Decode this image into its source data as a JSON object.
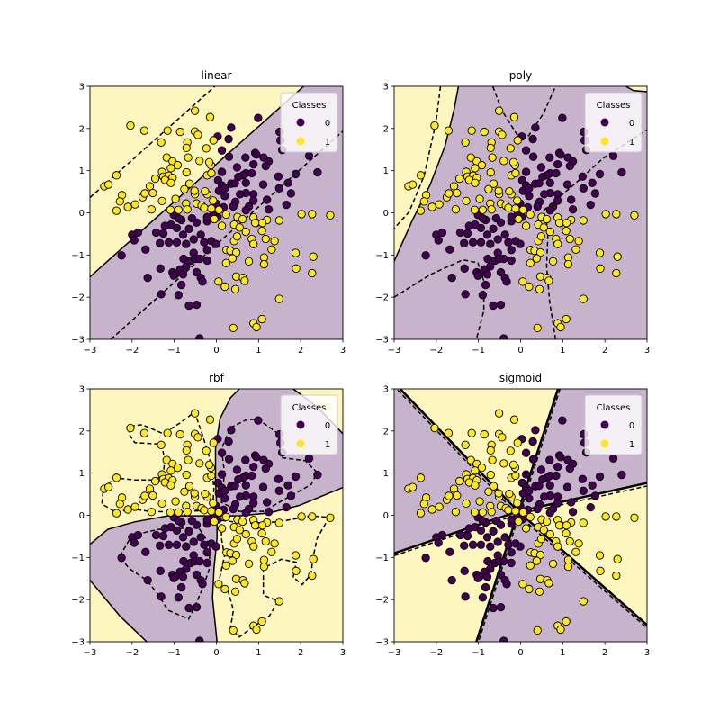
{
  "chart_data": {
    "type": "scatter",
    "xlim": [
      -3,
      3
    ],
    "ylim": [
      -3,
      3
    ],
    "ticks": [
      "−3",
      "−2",
      "−1",
      "0",
      "1",
      "2",
      "3"
    ],
    "tick_values": [
      -3,
      -2,
      -1,
      0,
      1,
      2,
      3
    ],
    "legend": {
      "title": "Classes",
      "entries": [
        "0",
        "1"
      ],
      "placement": "upper right"
    },
    "colors": {
      "class_0": "#440154",
      "class_1": "#fde725",
      "region_0": "#c7b3cc",
      "region_1": "#fdf7bf"
    },
    "panels": [
      {
        "title": "linear"
      },
      {
        "title": "poly"
      },
      {
        "title": "rbf"
      },
      {
        "title": "sigmoid"
      }
    ],
    "points": {
      "class_0": [
        [
          0.99,
          2.25
        ],
        [
          0.35,
          2.02
        ],
        [
          0.03,
          1.81
        ],
        [
          0.29,
          1.75
        ],
        [
          0.13,
          1.48
        ],
        [
          0.3,
          1.33
        ],
        [
          0.69,
          1.31
        ],
        [
          0.92,
          1.42
        ],
        [
          0.95,
          1.38
        ],
        [
          1.12,
          1.31
        ],
        [
          1.24,
          1.22
        ],
        [
          0.88,
          1.15
        ],
        [
          0.49,
          1.08
        ],
        [
          1.17,
          1.11
        ],
        [
          0.7,
          0.94
        ],
        [
          0.84,
          0.94
        ],
        [
          0.63,
          0.89
        ],
        [
          0.52,
          0.85
        ],
        [
          0.13,
          0.97
        ],
        [
          0.04,
          0.77
        ],
        [
          0.35,
          0.69
        ],
        [
          0.44,
          0.7
        ],
        [
          0.7,
          0.71
        ],
        [
          0.13,
          0.65
        ],
        [
          1.11,
          0.67
        ],
        [
          1.47,
          0.86
        ],
        [
          1.7,
          0.71
        ],
        [
          1.88,
          0.92
        ],
        [
          2.2,
          1.35
        ],
        [
          2.4,
          0.96
        ],
        [
          1.5,
          1.92
        ],
        [
          1.52,
          1.72
        ],
        [
          1.56,
          1.49
        ],
        [
          1.77,
          0.46
        ],
        [
          1.49,
          0.58
        ],
        [
          1.66,
          0.19
        ],
        [
          1.24,
          0.08
        ],
        [
          1.2,
          0.31
        ],
        [
          0.7,
          0.47
        ],
        [
          0.88,
          0.44
        ],
        [
          0.56,
          0.44
        ],
        [
          0.2,
          0.4
        ],
        [
          0.45,
          0.26
        ],
        [
          0.4,
          0.15
        ],
        [
          0.17,
          0.13
        ],
        [
          -0.01,
          0.22
        ],
        [
          0.06,
          0.52
        ],
        [
          0.2,
          0.58
        ],
        [
          0.77,
          0.15
        ],
        [
          0.88,
          0.29
        ],
        [
          0.7,
          0.06
        ],
        [
          0.03,
          -0.1
        ],
        [
          -0.08,
          -0.06
        ],
        [
          -0.22,
          -0.2
        ],
        [
          -0.22,
          -0.1
        ],
        [
          -0.58,
          -0.13
        ],
        [
          -0.47,
          -0.23
        ],
        [
          -0.83,
          -0.17
        ],
        [
          -1.01,
          -0.05
        ],
        [
          -0.9,
          -0.13
        ],
        [
          -1.08,
          -0.28
        ],
        [
          -0.94,
          -0.36
        ],
        [
          -1.22,
          -0.31
        ],
        [
          -1.43,
          -0.47
        ],
        [
          -1.26,
          -0.49
        ],
        [
          -1.13,
          -0.7
        ],
        [
          -0.94,
          -0.7
        ],
        [
          -0.72,
          -0.74
        ],
        [
          -0.54,
          -0.63
        ],
        [
          -0.37,
          -0.52
        ],
        [
          -0.29,
          -0.7
        ],
        [
          -0.12,
          -0.67
        ],
        [
          -0.01,
          -0.74
        ],
        [
          -0.65,
          -0.38
        ],
        [
          -0.79,
          -0.52
        ],
        [
          -2.0,
          -0.52
        ],
        [
          -1.86,
          -0.47
        ],
        [
          -1.95,
          -0.65
        ],
        [
          -1.34,
          -0.72
        ],
        [
          -1.68,
          -0.87
        ],
        [
          -2.25,
          -1.01
        ],
        [
          -0.54,
          -0.95
        ],
        [
          -0.22,
          -0.88
        ],
        [
          -0.78,
          -1.09
        ],
        [
          -0.61,
          -1.13
        ],
        [
          -0.51,
          -1.09
        ],
        [
          -0.4,
          -1.09
        ],
        [
          -0.22,
          -1.13
        ],
        [
          -0.72,
          -1.27
        ],
        [
          -0.86,
          -1.34
        ],
        [
          -1.33,
          -1.32
        ],
        [
          -1.04,
          -1.41
        ],
        [
          -0.97,
          -1.45
        ],
        [
          -0.79,
          -1.46
        ],
        [
          -0.47,
          -1.41
        ],
        [
          -0.37,
          -1.54
        ],
        [
          -0.33,
          -1.63
        ],
        [
          -1.01,
          -1.49
        ],
        [
          -1.63,
          -1.54
        ],
        [
          -0.83,
          -1.71
        ],
        [
          -1.31,
          -1.93
        ],
        [
          -0.9,
          -1.95
        ],
        [
          -0.65,
          -2.2
        ],
        [
          -0.47,
          -2.18
        ],
        [
          -0.4,
          -2.98
        ]
      ],
      "class_1": [
        [
          -2.04,
          2.07
        ],
        [
          -1.71,
          1.95
        ],
        [
          -1.16,
          1.95
        ],
        [
          -0.86,
          1.92
        ],
        [
          -0.51,
          2.42
        ],
        [
          -0.15,
          2.27
        ],
        [
          -0.51,
          1.93
        ],
        [
          -0.44,
          1.85
        ],
        [
          -0.07,
          1.72
        ],
        [
          -0.69,
          1.67
        ],
        [
          -0.71,
          1.54
        ],
        [
          -1.31,
          1.67
        ],
        [
          -0.24,
          1.53
        ],
        [
          -1.18,
          1.31
        ],
        [
          -1.04,
          1.22
        ],
        [
          -0.67,
          1.31
        ],
        [
          -0.4,
          1.23
        ],
        [
          -0.13,
          1.13
        ],
        [
          -1.08,
          1.06
        ],
        [
          -0.92,
          1.13
        ],
        [
          -0.71,
          0.96
        ],
        [
          -1.29,
          0.97
        ],
        [
          -1.26,
          0.86
        ],
        [
          -1.13,
          0.88
        ],
        [
          -1.04,
          0.83
        ],
        [
          -1.22,
          0.78
        ],
        [
          -1.08,
          0.71
        ],
        [
          -1.45,
          0.81
        ],
        [
          -1.58,
          0.63
        ],
        [
          -2.37,
          0.89
        ],
        [
          -2.66,
          0.63
        ],
        [
          -2.56,
          0.67
        ],
        [
          -2.24,
          0.42
        ],
        [
          -2.29,
          0.27
        ],
        [
          -2.37,
          0.05
        ],
        [
          -2.1,
          0.14
        ],
        [
          -1.93,
          0.2
        ],
        [
          -1.75,
          0.37
        ],
        [
          -1.7,
          0.46
        ],
        [
          -1.51,
          0.47
        ],
        [
          -1.54,
          0.08
        ],
        [
          -1.29,
          0.28
        ],
        [
          -0.97,
          0.33
        ],
        [
          -0.9,
          0.07
        ],
        [
          -1.09,
          0.07
        ],
        [
          -0.76,
          0.56
        ],
        [
          -0.64,
          0.69
        ],
        [
          -0.51,
          0.44
        ],
        [
          -0.47,
          0.22
        ],
        [
          -0.72,
          0.22
        ],
        [
          -0.69,
          0.08
        ],
        [
          -0.35,
          0.17
        ],
        [
          -0.29,
          0.12
        ],
        [
          -0.08,
          0.29
        ],
        [
          -0.22,
          0.44
        ],
        [
          -0.12,
          0.1
        ],
        [
          0.06,
          0.07
        ],
        [
          -0.05,
          -0.15
        ],
        [
          0.23,
          -0.04
        ],
        [
          0.13,
          -0.31
        ],
        [
          0.5,
          -0.1
        ],
        [
          0.42,
          -0.28
        ],
        [
          0.55,
          -0.35
        ],
        [
          0.7,
          -0.45
        ],
        [
          0.62,
          -0.15
        ],
        [
          0.88,
          -0.11
        ],
        [
          0.95,
          -0.24
        ],
        [
          1.2,
          -0.17
        ],
        [
          1.09,
          -0.24
        ],
        [
          0.92,
          -0.24
        ],
        [
          1.49,
          -0.18
        ],
        [
          2.02,
          -0.03
        ],
        [
          2.27,
          -0.03
        ],
        [
          2.7,
          -0.06
        ],
        [
          1.08,
          -0.43
        ],
        [
          1.17,
          -0.62
        ],
        [
          1.38,
          -0.67
        ],
        [
          0.84,
          -0.62
        ],
        [
          0.88,
          -0.74
        ],
        [
          0.42,
          -0.67
        ],
        [
          0.49,
          -0.56
        ],
        [
          0.24,
          -0.88
        ],
        [
          0.33,
          -0.9
        ],
        [
          0.47,
          -0.94
        ],
        [
          1.31,
          -0.87
        ],
        [
          1.88,
          -0.95
        ],
        [
          2.3,
          -1.04
        ],
        [
          0.77,
          -1.15
        ],
        [
          1.13,
          -1.06
        ],
        [
          1.13,
          -1.22
        ],
        [
          0.23,
          -1.19
        ],
        [
          0.38,
          -1.08
        ],
        [
          1.89,
          -1.32
        ],
        [
          2.27,
          -1.43
        ],
        [
          0.47,
          -1.51
        ],
        [
          0.63,
          -1.54
        ],
        [
          0.67,
          -1.61
        ],
        [
          0.05,
          -1.63
        ],
        [
          0.2,
          -1.75
        ],
        [
          0.45,
          -1.81
        ],
        [
          1.49,
          -2.04
        ],
        [
          0.88,
          -2.62
        ],
        [
          1.08,
          -2.52
        ],
        [
          0.4,
          -2.73
        ],
        [
          0.95,
          -2.71
        ],
        [
          -0.17,
          1.2
        ],
        [
          -0.22,
          0.89
        ],
        [
          -0.12,
          0.94
        ],
        [
          -0.52,
          0.52
        ],
        [
          -0.27,
          0.51
        ]
      ]
    }
  }
}
